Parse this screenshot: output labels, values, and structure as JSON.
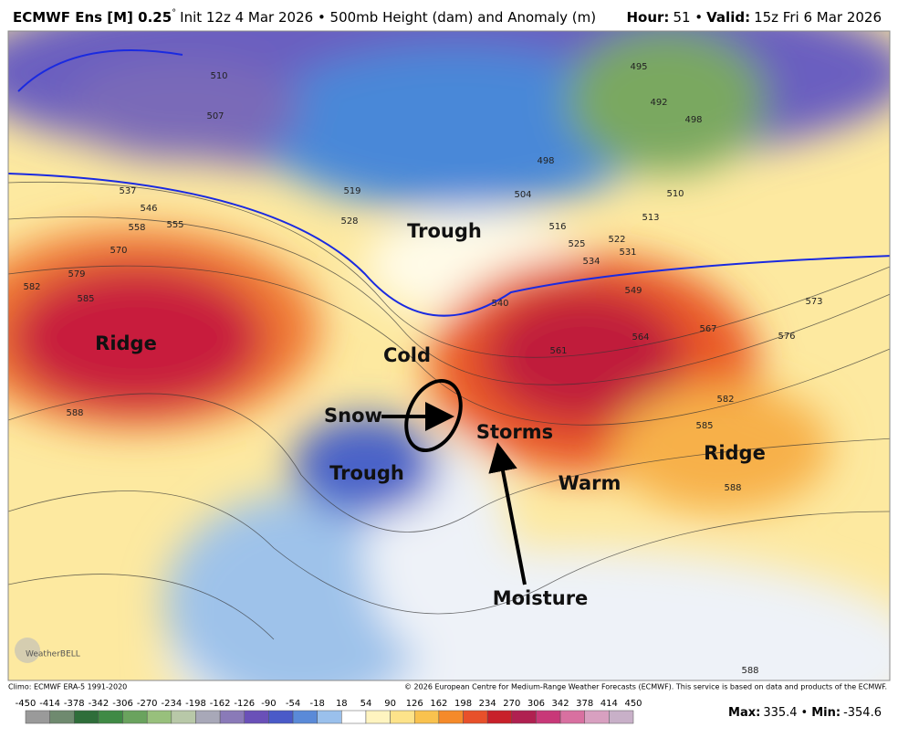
{
  "header": {
    "model": "ECMWF Ens [M] 0.25",
    "degree": "°",
    "info": "Init 12z 4 Mar 2026 • 500mb Height (dam) and Anomaly (m)",
    "hour_label": "Hour:",
    "hour": "51 •",
    "valid_label": "Valid:",
    "valid": "15z Fri 6 Mar 2026"
  },
  "map": {
    "annotations": [
      "Ridge",
      "Trough",
      "Cold",
      "Snow",
      "Trough",
      "Storms",
      "Warm",
      "Ridge",
      "Moisture"
    ],
    "contour_labels": [
      "510",
      "507",
      "537",
      "546",
      "558",
      "555",
      "570",
      "579",
      "582",
      "585",
      "588",
      "519",
      "528",
      "498",
      "504",
      "516",
      "525",
      "522",
      "531",
      "534",
      "540",
      "549",
      "561",
      "564",
      "567",
      "573",
      "576",
      "582",
      "585",
      "588",
      "513",
      "510",
      "495",
      "492",
      "498",
      "588"
    ],
    "logo": "WeatherBELL"
  },
  "footer": {
    "climo": "Climo: ECMWF ERA-5 1991-2020",
    "copyright": "© 2026 European Centre for Medium-Range Weather Forecasts (ECMWF). This service is based on data and products of the ECMWF.",
    "max_label": "Max:",
    "max": "335.4",
    "separator": "•",
    "min_label": "Min:",
    "min": "-354.6"
  },
  "colorbar": {
    "ticks": [
      -450,
      -414,
      -378,
      -342,
      -306,
      -270,
      -234,
      -198,
      -162,
      -126,
      -90,
      -54,
      -18,
      18,
      54,
      90,
      126,
      162,
      198,
      234,
      270,
      306,
      342,
      378,
      414,
      450
    ],
    "colors": [
      "#9a9a9a",
      "#6f8a6f",
      "#2f6e3a",
      "#3f8a45",
      "#6aa35e",
      "#98c07c",
      "#b8c8a8",
      "#a8a8b8",
      "#8a7ab8",
      "#6a50b8",
      "#4a5ac8",
      "#5a8ad8",
      "#9ac0ec",
      "#ffffff",
      "#fff4c0",
      "#fde38a",
      "#f9c24e",
      "#f58a2a",
      "#e8502a",
      "#c8202a",
      "#b02050",
      "#c83878",
      "#d870a0",
      "#d8a0c0",
      "#c8b0c8"
    ]
  }
}
